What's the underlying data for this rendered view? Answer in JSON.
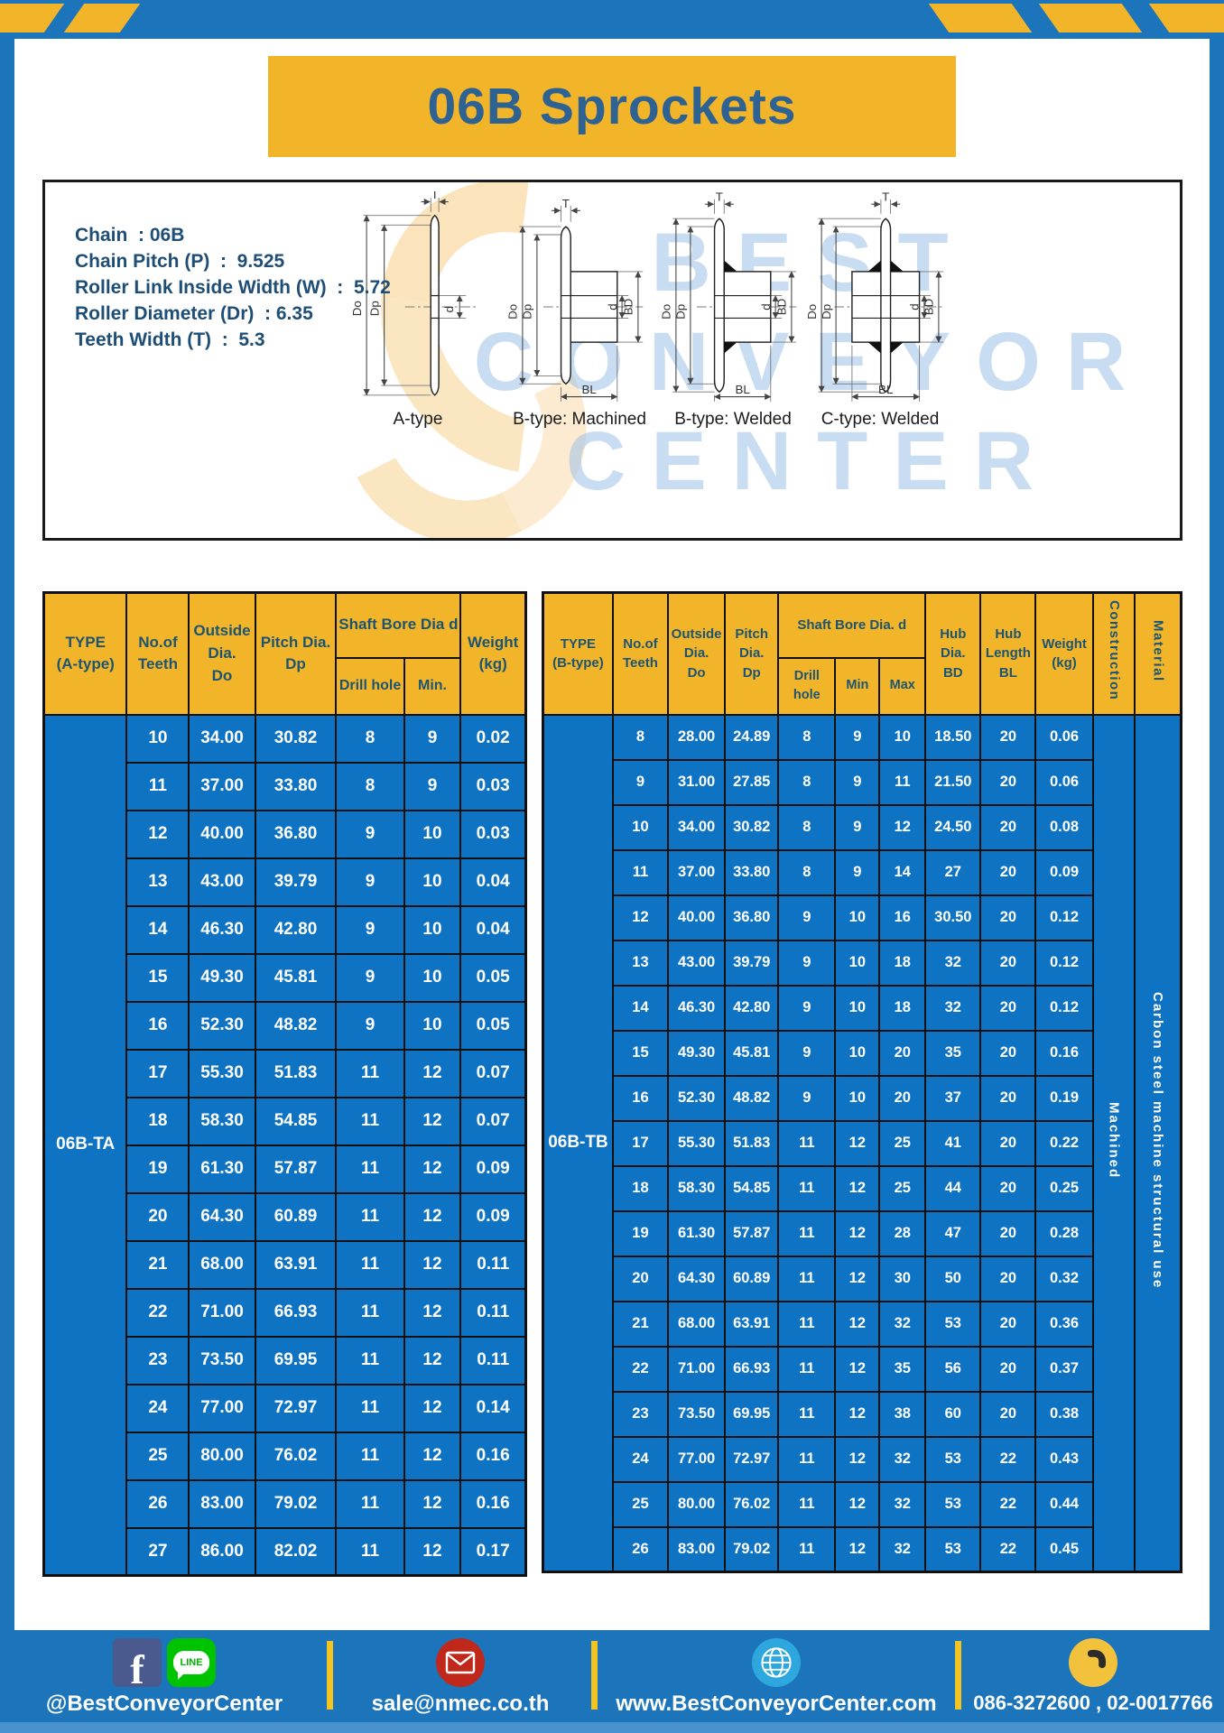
{
  "title": "06B Sprockets",
  "specs": {
    "lines": [
      "Chain  : 06B",
      "Chain Pitch (P)  :  9.525",
      "Roller Link Inside Width (W)  :  5.72",
      "Roller Diameter (Dr)  : 6.35",
      "Teeth Width (T)  :  5.3"
    ]
  },
  "diagrams": {
    "labels": [
      "A-type",
      "B-type: Machined",
      "B-type: Welded",
      "C-type: Welded"
    ],
    "dims": {
      "Do": "Do",
      "Dp": "Dp",
      "d": "d",
      "T": "T",
      "BD": "BD",
      "BL": "BL"
    },
    "watermark": "BEST\nCONVEYOR\nCENTER"
  },
  "table_a": {
    "header": {
      "type": "TYPE\n(A-type)",
      "teeth": "No.of\nTeeth",
      "outside": "Outside\nDia.\nDo",
      "pitch": "Pitch Dia.\nDp",
      "shaft": "Shaft Bore Dia d",
      "drill": "Drill hole",
      "min": "Min.",
      "weight": "Weight\n(kg)"
    },
    "type_value": "06B-TA",
    "rows": [
      [
        "10",
        "34.00",
        "30.82",
        "8",
        "9",
        "0.02"
      ],
      [
        "11",
        "37.00",
        "33.80",
        "8",
        "9",
        "0.03"
      ],
      [
        "12",
        "40.00",
        "36.80",
        "9",
        "10",
        "0.03"
      ],
      [
        "13",
        "43.00",
        "39.79",
        "9",
        "10",
        "0.04"
      ],
      [
        "14",
        "46.30",
        "42.80",
        "9",
        "10",
        "0.04"
      ],
      [
        "15",
        "49.30",
        "45.81",
        "9",
        "10",
        "0.05"
      ],
      [
        "16",
        "52.30",
        "48.82",
        "9",
        "10",
        "0.05"
      ],
      [
        "17",
        "55.30",
        "51.83",
        "11",
        "12",
        "0.07"
      ],
      [
        "18",
        "58.30",
        "54.85",
        "11",
        "12",
        "0.07"
      ],
      [
        "19",
        "61.30",
        "57.87",
        "11",
        "12",
        "0.09"
      ],
      [
        "20",
        "64.30",
        "60.89",
        "11",
        "12",
        "0.09"
      ],
      [
        "21",
        "68.00",
        "63.91",
        "11",
        "12",
        "0.11"
      ],
      [
        "22",
        "71.00",
        "66.93",
        "11",
        "12",
        "0.11"
      ],
      [
        "23",
        "73.50",
        "69.95",
        "11",
        "12",
        "0.11"
      ],
      [
        "24",
        "77.00",
        "72.97",
        "11",
        "12",
        "0.14"
      ],
      [
        "25",
        "80.00",
        "76.02",
        "11",
        "12",
        "0.16"
      ],
      [
        "26",
        "83.00",
        "79.02",
        "11",
        "12",
        "0.16"
      ],
      [
        "27",
        "86.00",
        "82.02",
        "11",
        "12",
        "0.17"
      ]
    ]
  },
  "table_b": {
    "header": {
      "type": "TYPE\n(B-type)",
      "teeth": "No.of\nTeeth",
      "outside": "Outside\nDia.\nDo",
      "pitch": "Pitch\nDia.\nDp",
      "shaft": "Shaft Bore Dia.  d",
      "drill": "Drill hole",
      "min": "Min",
      "max": "Max",
      "hub_dia": "Hub\nDia.\nBD",
      "hub_len": "Hub\nLength\nBL",
      "weight": "Weight\n(kg)",
      "construction": "Construction",
      "material": "Material"
    },
    "type_value": "06B-TB",
    "construction_value": "Machined",
    "material_value": "Carbon  steel  machine  structural  use",
    "rows": [
      [
        "8",
        "28.00",
        "24.89",
        "8",
        "9",
        "10",
        "18.50",
        "20",
        "0.06"
      ],
      [
        "9",
        "31.00",
        "27.85",
        "8",
        "9",
        "11",
        "21.50",
        "20",
        "0.06"
      ],
      [
        "10",
        "34.00",
        "30.82",
        "8",
        "9",
        "12",
        "24.50",
        "20",
        "0.08"
      ],
      [
        "11",
        "37.00",
        "33.80",
        "8",
        "9",
        "14",
        "27",
        "20",
        "0.09"
      ],
      [
        "12",
        "40.00",
        "36.80",
        "9",
        "10",
        "16",
        "30.50",
        "20",
        "0.12"
      ],
      [
        "13",
        "43.00",
        "39.79",
        "9",
        "10",
        "18",
        "32",
        "20",
        "0.12"
      ],
      [
        "14",
        "46.30",
        "42.80",
        "9",
        "10",
        "18",
        "32",
        "20",
        "0.12"
      ],
      [
        "15",
        "49.30",
        "45.81",
        "9",
        "10",
        "20",
        "35",
        "20",
        "0.16"
      ],
      [
        "16",
        "52.30",
        "48.82",
        "9",
        "10",
        "20",
        "37",
        "20",
        "0.19"
      ],
      [
        "17",
        "55.30",
        "51.83",
        "11",
        "12",
        "25",
        "41",
        "20",
        "0.22"
      ],
      [
        "18",
        "58.30",
        "54.85",
        "11",
        "12",
        "25",
        "44",
        "20",
        "0.25"
      ],
      [
        "19",
        "61.30",
        "57.87",
        "11",
        "12",
        "28",
        "47",
        "20",
        "0.28"
      ],
      [
        "20",
        "64.30",
        "60.89",
        "11",
        "12",
        "30",
        "50",
        "20",
        "0.32"
      ],
      [
        "21",
        "68.00",
        "63.91",
        "11",
        "12",
        "32",
        "53",
        "20",
        "0.36"
      ],
      [
        "22",
        "71.00",
        "66.93",
        "11",
        "12",
        "35",
        "56",
        "20",
        "0.37"
      ],
      [
        "23",
        "73.50",
        "69.95",
        "11",
        "12",
        "38",
        "60",
        "20",
        "0.38"
      ],
      [
        "24",
        "77.00",
        "72.97",
        "11",
        "12",
        "32",
        "53",
        "22",
        "0.43"
      ],
      [
        "25",
        "80.00",
        "76.02",
        "11",
        "12",
        "32",
        "53",
        "22",
        "0.44"
      ],
      [
        "26",
        "83.00",
        "79.02",
        "11",
        "12",
        "32",
        "53",
        "22",
        "0.45"
      ]
    ]
  },
  "footer": {
    "fb_letter": "f",
    "line_label": "LINE",
    "social_handle": "@BestConveyorCenter",
    "email": "sale@nmec.co.th",
    "website": "www.BestConveyorCenter.com",
    "phones": "086-3272600 , 02-0017766"
  },
  "colors": {
    "frame_blue": "#1c75bb",
    "accent_yellow": "#f2b52a",
    "cell_blue": "#0f73c4",
    "header_text": "#1d5471",
    "title_text": "#2e6292"
  }
}
